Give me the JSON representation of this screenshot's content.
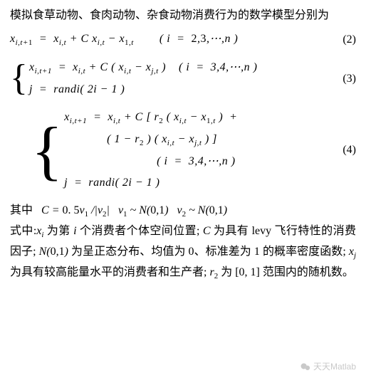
{
  "intro": "模拟食草动物、食肉动物、杂食动物消费行为的数学模型分别为",
  "eq2": {
    "body_html": "x<span class='sub'>i,t+<span class='rm'>1</span></span>&nbsp;&nbsp;=&nbsp;&nbsp;x<span class='sub'>i,t</span>&nbsp;+&nbsp;C x<span class='sub'>i,t</span>&nbsp;−&nbsp;x<span class='subr'>1</span><span class='sub'>,t</span>&nbsp;&nbsp;&nbsp;&nbsp;&nbsp;&nbsp;&nbsp;&nbsp;( <span class='rm'></span>i&nbsp;&nbsp;=&nbsp;&nbsp;<span class='rm'>2</span>,<span class='rm'>3</span>,⋯,n )",
    "num": "(2)"
  },
  "eq3": {
    "row1_html": "x<span class='sub'>i,t+<span class='rm'>1</span></span>&nbsp;&nbsp;=&nbsp;&nbsp;x<span class='sub'>i,t</span>&nbsp;+&nbsp;C ( x<span class='sub'>i,t</span>&nbsp;−&nbsp;x<span class='sub'>j,t</span> )&nbsp;&nbsp;&nbsp;&nbsp;( i&nbsp;&nbsp;=&nbsp;&nbsp;<span class='rm'>3</span>,<span class='rm'>4</span>,⋯,n )",
    "row2_html": "j&nbsp;&nbsp;=&nbsp;&nbsp;<span class='rm'>randi</span>( <span class='rm'>2</span>i&nbsp;−&nbsp;<span class='rm'>1</span> )",
    "num": "(3)"
  },
  "eq4": {
    "row1_html": "x<span class='sub'>i,t+<span class='rm'>1</span></span>&nbsp;&nbsp;=&nbsp;&nbsp;x<span class='sub'>i,t</span>&nbsp;+&nbsp;C [ r<span class='subr'>2</span> ( x<span class='sub'>i,t</span>&nbsp;−&nbsp;x<span class='subr'>1</span><span class='sub'>,t</span> )&nbsp;&nbsp;+",
    "row2_html": "( <span class='rm'>1</span>&nbsp;−&nbsp;r<span class='subr'>2</span> ) ( x<span class='sub'>i,t</span>&nbsp;−&nbsp;x<span class='sub'>j,t</span> ) ]",
    "row3_html": "( i&nbsp;&nbsp;=&nbsp;&nbsp;<span class='rm'>3</span>,<span class='rm'>4</span>,⋯,n )",
    "row4_html": "j&nbsp;&nbsp;=&nbsp;&nbsp;<span class='rm'>randi</span>( <span class='rm'>2</span>i&nbsp;−&nbsp;<span class='rm'>1</span> )",
    "num": "(4)"
  },
  "where_label": "其中",
  "where_math_html": "C = <span class='rm'>0. 5</span>v<span class='subr'>1</span> /|v<span class='subr'>2</span>|&nbsp;&nbsp;&nbsp;v<span class='subr'>1</span> ~ N(<span class='rm'>0</span>,<span class='rm'>1</span>)&nbsp;&nbsp;&nbsp;v<span class='subr'>2</span> ~ N(<span class='rm'>0</span>,<span class='rm'>1</span>)",
  "body_label": "式中:",
  "body_seg1_html": "x<span class='sub'>i</span>",
  "body_seg1_tail": " 为第 ",
  "body_seg2_html": "i",
  "body_seg2_tail": " 个消费者个体空间位置; ",
  "body_seg3_html": "C",
  "body_seg3_tail": " 为具有 levy 飞行特性的消费因子; ",
  "body_seg4_html": "N(<span class='rm'>0</span>,<span class='rm'>1</span>)",
  "body_seg4_tail": " 为呈正态分布、均值为 0、标准差为 1 的概率密度函数; ",
  "body_seg5_html": "x<span class='sub'>j</span>",
  "body_seg5_tail": " 为具有较高能量水平的消费者和生产者; ",
  "body_seg6_html": "r<span class='subr'>2</span>",
  "body_seg6_tail": " 为 [0, 1] 范围内的随机数。",
  "watermark": "天天Matlab",
  "colors": {
    "text": "#000000",
    "background": "#ffffff",
    "watermark": "#c9c9c9"
  },
  "fonts": {
    "cjk": "SimSun",
    "math": "Times New Roman",
    "base_size_pt": 12
  }
}
